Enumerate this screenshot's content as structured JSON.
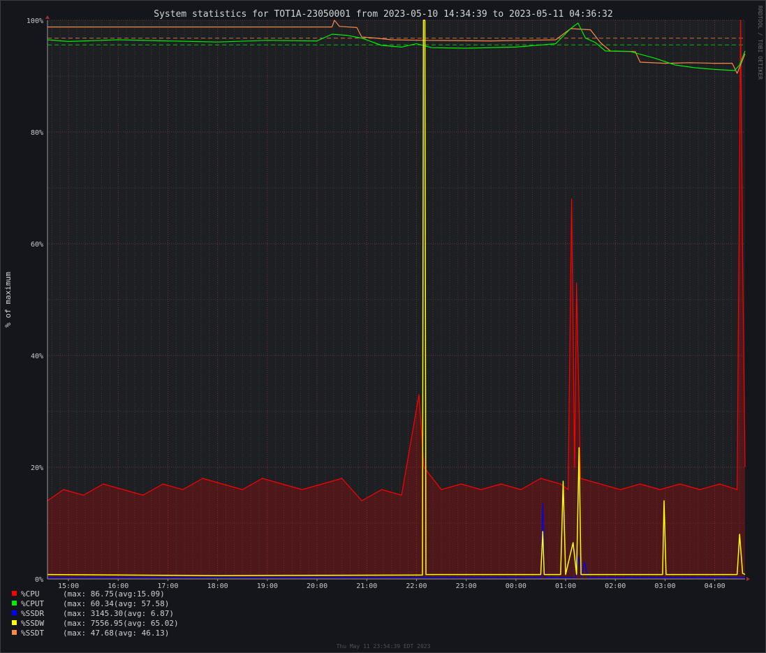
{
  "chart_data": {
    "type": "line",
    "title": "System statistics for TOT1A-23050001 from 2023-05-10 14:34:39 to 2023-05-11 04:36:32",
    "ylabel": "% of maximum",
    "ylim": [
      0,
      100
    ],
    "y_ticks": [
      "0%",
      "20%",
      "40%",
      "60%",
      "80%",
      "100%"
    ],
    "x_ticks": [
      "15:00",
      "16:00",
      "17:00",
      "18:00",
      "19:00",
      "20:00",
      "21:00",
      "22:00",
      "23:00",
      "00:00",
      "01:00",
      "02:00",
      "03:00",
      "04:00"
    ],
    "x_range_hours": [
      14.578,
      28.609
    ],
    "grid": true,
    "legend_position": "bottom-left",
    "series": [
      {
        "key": "cpu",
        "name": "%CPU",
        "color": "#ff0000",
        "legend_text": "(max: 86.75(avg:15.09)",
        "points": [
          [
            14.58,
            14
          ],
          [
            14.9,
            16
          ],
          [
            15.3,
            15
          ],
          [
            15.7,
            17
          ],
          [
            16.1,
            16
          ],
          [
            16.5,
            15
          ],
          [
            16.9,
            17
          ],
          [
            17.3,
            16
          ],
          [
            17.7,
            18
          ],
          [
            18.1,
            17
          ],
          [
            18.5,
            16
          ],
          [
            18.9,
            18
          ],
          [
            19.3,
            17
          ],
          [
            19.7,
            16
          ],
          [
            20.1,
            17
          ],
          [
            20.5,
            18
          ],
          [
            20.9,
            14
          ],
          [
            21.3,
            16
          ],
          [
            21.7,
            15
          ],
          [
            22.05,
            33
          ],
          [
            22.15,
            20
          ],
          [
            22.5,
            16
          ],
          [
            22.9,
            17
          ],
          [
            23.3,
            16
          ],
          [
            23.7,
            17
          ],
          [
            24.1,
            16
          ],
          [
            24.5,
            18
          ],
          [
            24.9,
            17
          ],
          [
            25.05,
            16
          ],
          [
            25.12,
            68
          ],
          [
            25.18,
            20
          ],
          [
            25.22,
            53
          ],
          [
            25.3,
            18
          ],
          [
            25.7,
            17
          ],
          [
            26.1,
            16
          ],
          [
            26.5,
            17
          ],
          [
            26.9,
            16
          ],
          [
            27.3,
            17
          ],
          [
            27.7,
            16
          ],
          [
            28.1,
            17
          ],
          [
            28.45,
            16
          ],
          [
            28.52,
            100
          ],
          [
            28.56,
            58
          ],
          [
            28.609,
            20
          ]
        ]
      },
      {
        "key": "cput",
        "name": "%CPUT",
        "color": "#00ee00",
        "legend_text": "(max: 60.34(avg: 57.58)",
        "points": [
          [
            14.58,
            96.5
          ],
          [
            15.0,
            96.2
          ],
          [
            16.0,
            96.5
          ],
          [
            17.0,
            96.3
          ],
          [
            18.0,
            96.1
          ],
          [
            19.0,
            96.4
          ],
          [
            20.0,
            96.3
          ],
          [
            20.3,
            97.5
          ],
          [
            20.6,
            97.3
          ],
          [
            20.9,
            96.8
          ],
          [
            21.3,
            95.5
          ],
          [
            21.7,
            95.2
          ],
          [
            22.0,
            95.8
          ],
          [
            22.3,
            95.1
          ],
          [
            23.0,
            95.0
          ],
          [
            24.0,
            95.2
          ],
          [
            24.8,
            95.8
          ],
          [
            25.1,
            98.5
          ],
          [
            25.25,
            99.5
          ],
          [
            25.4,
            96.8
          ],
          [
            25.6,
            96.0
          ],
          [
            25.8,
            94.5
          ],
          [
            26.3,
            94.4
          ],
          [
            26.8,
            93.2
          ],
          [
            27.2,
            92.0
          ],
          [
            27.6,
            91.5
          ],
          [
            28.0,
            91.2
          ],
          [
            28.4,
            91.0
          ],
          [
            28.5,
            92.0
          ],
          [
            28.609,
            94.5
          ]
        ]
      },
      {
        "key": "ssdr",
        "name": "%SSDR",
        "color": "#0000ff",
        "legend_text": "(max: 3145.30(avg: 6.87)",
        "points": [
          [
            14.58,
            0.2
          ],
          [
            24.5,
            0.2
          ],
          [
            24.54,
            13.5
          ],
          [
            24.58,
            0.3
          ],
          [
            25.2,
            0.3
          ],
          [
            25.26,
            4
          ],
          [
            25.32,
            0.3
          ],
          [
            25.38,
            3
          ],
          [
            25.45,
            0.3
          ],
          [
            28.609,
            0.2
          ]
        ]
      },
      {
        "key": "ssdw",
        "name": "%SSDW",
        "color": "#ffff00",
        "legend_text": "(max: 7556.95(avg: 65.02)",
        "points": [
          [
            14.58,
            0.8
          ],
          [
            18.0,
            0.6
          ],
          [
            22.0,
            0.7
          ],
          [
            22.12,
            0.7
          ],
          [
            22.14,
            100
          ],
          [
            22.17,
            100
          ],
          [
            22.19,
            0.8
          ],
          [
            24.5,
            0.8
          ],
          [
            24.54,
            8.5
          ],
          [
            24.57,
            0.8
          ],
          [
            24.9,
            0.8
          ],
          [
            24.95,
            17.5
          ],
          [
            25.0,
            0.8
          ],
          [
            25.15,
            6.5
          ],
          [
            25.22,
            0.8
          ],
          [
            25.27,
            23.5
          ],
          [
            25.31,
            0.8
          ],
          [
            26.95,
            0.8
          ],
          [
            26.98,
            14
          ],
          [
            27.02,
            0.8
          ],
          [
            28.45,
            0.8
          ],
          [
            28.5,
            8
          ],
          [
            28.56,
            1
          ],
          [
            28.609,
            0.8
          ]
        ]
      },
      {
        "key": "ssdt",
        "name": "%SSDT",
        "color": "#ff8844",
        "legend_text": "(max: 47.68(avg: 46.13)",
        "points": [
          [
            14.58,
            98.8
          ],
          [
            20.3,
            98.8
          ],
          [
            20.35,
            100
          ],
          [
            20.45,
            98.9
          ],
          [
            20.8,
            98.7
          ],
          [
            20.9,
            97.0
          ],
          [
            21.2,
            96.8
          ],
          [
            21.5,
            96.5
          ],
          [
            22.2,
            96.4
          ],
          [
            23.5,
            96.3
          ],
          [
            24.8,
            96.5
          ],
          [
            25.1,
            98.5
          ],
          [
            25.5,
            98.3
          ],
          [
            25.7,
            96.0
          ],
          [
            25.9,
            94.5
          ],
          [
            26.4,
            94.4
          ],
          [
            26.5,
            92.5
          ],
          [
            27.0,
            92.3
          ],
          [
            27.5,
            92.4
          ],
          [
            28.0,
            92.3
          ],
          [
            28.35,
            92.3
          ],
          [
            28.45,
            90.5
          ],
          [
            28.609,
            94.0
          ]
        ]
      }
    ],
    "reference_lines": [
      {
        "series": "ssdt",
        "value": 96.8
      },
      {
        "series": "cput",
        "value": 95.6
      }
    ]
  },
  "side_label": "RRDTOOL / TOBI OETIKER",
  "footer": "Thu May 11 23:54:39 EDT 2023"
}
